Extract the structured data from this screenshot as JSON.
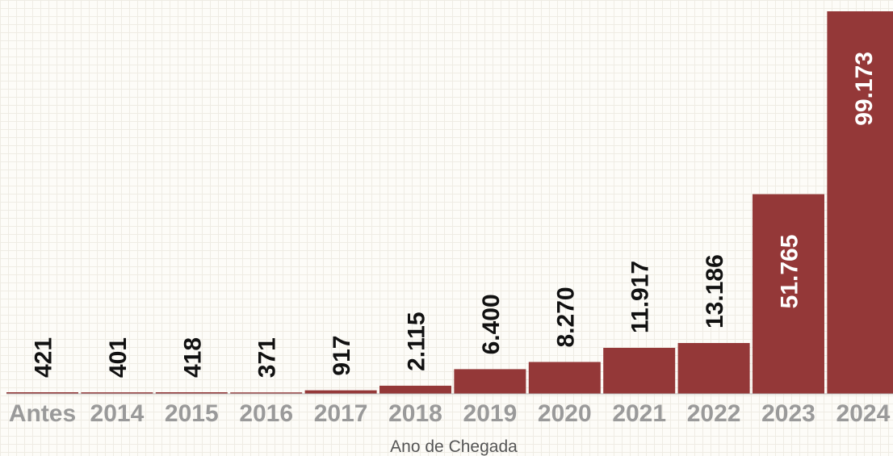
{
  "chart_data": {
    "type": "bar",
    "categories": [
      "Antes",
      "2014",
      "2015",
      "2016",
      "2017",
      "2018",
      "2019",
      "2020",
      "2021",
      "2022",
      "2023",
      "2024"
    ],
    "values": [
      421,
      401,
      418,
      371,
      917,
      2115,
      6400,
      8270,
      11917,
      13186,
      51765,
      99173
    ],
    "value_labels": [
      "421",
      "401",
      "418",
      "371",
      "917",
      "2.115",
      "6.400",
      "8.270",
      "11.917",
      "13.186",
      "51.765",
      "99.173"
    ],
    "xlabel": "Ano de Chegada",
    "ylabel": "",
    "ylim": [
      0,
      99173
    ],
    "bar_color": "#943838",
    "grid": true
  }
}
